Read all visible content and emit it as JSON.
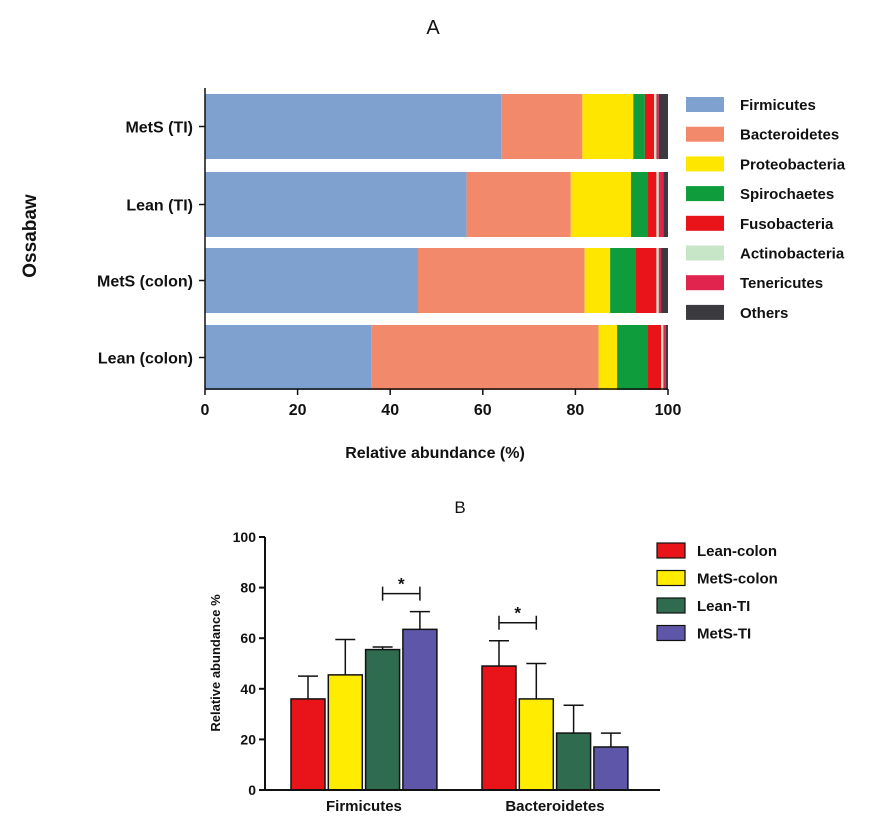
{
  "chart_data": [
    {
      "panel": "A",
      "type": "bar",
      "orientation": "horizontal",
      "stacked": true,
      "group_label": "Ossabaw",
      "categories": [
        "MetS (TI)",
        "Lean (TI)",
        "MetS (colon)",
        "Lean (colon)"
      ],
      "xlabel": "Relative abundance (%)",
      "xlim": [
        0,
        100
      ],
      "xticks": [
        "0",
        "20",
        "40",
        "60",
        "80",
        "100"
      ],
      "legend_position": "right",
      "series": [
        {
          "name": "Firmicutes",
          "color": "#7fa1cf",
          "values": [
            64.0,
            56.5,
            46.0,
            36.0
          ]
        },
        {
          "name": "Bacteroidetes",
          "color": "#f2896a",
          "values": [
            17.5,
            22.5,
            36.0,
            49.0
          ]
        },
        {
          "name": "Proteobacteria",
          "color": "#ffe600",
          "values": [
            11.0,
            13.0,
            5.5,
            4.0
          ]
        },
        {
          "name": "Spirochaetes",
          "color": "#0f9c3c",
          "values": [
            2.5,
            3.5,
            5.5,
            6.5
          ]
        },
        {
          "name": "Fusobacteria",
          "color": "#e8141a",
          "values": [
            2.0,
            2.0,
            4.5,
            3.0
          ]
        },
        {
          "name": "Actinobacteria",
          "color": "#c7e6c8",
          "values": [
            0.5,
            0.5,
            0.5,
            0.5
          ]
        },
        {
          "name": "Tenericutes",
          "color": "#e0244d",
          "values": [
            0.5,
            1.0,
            0.5,
            0.5
          ]
        },
        {
          "name": "Others",
          "color": "#3b3b3f",
          "values": [
            2.0,
            1.0,
            1.5,
            0.5
          ]
        }
      ]
    },
    {
      "panel": "B",
      "type": "bar",
      "grouped": true,
      "categories": [
        "Firmicutes",
        "Bacteroidetes"
      ],
      "ylabel": "Relative abundance %",
      "ylim": [
        0,
        100
      ],
      "yticks": [
        "0",
        "20",
        "40",
        "60",
        "80",
        "100"
      ],
      "legend_position": "right",
      "series": [
        {
          "name": "Lean-colon",
          "color": "#e8141a",
          "values": [
            36,
            49
          ],
          "errors": [
            9,
            10
          ]
        },
        {
          "name": "MetS-colon",
          "color": "#ffec00",
          "values": [
            45.5,
            36
          ],
          "errors": [
            14,
            14
          ]
        },
        {
          "name": "Lean-TI",
          "color": "#2e6b4f",
          "values": [
            55.5,
            22.5
          ],
          "errors": [
            1,
            11
          ]
        },
        {
          "name": "MetS-TI",
          "color": "#5e56a8",
          "values": [
            63.5,
            17
          ],
          "errors": [
            7,
            5.5
          ]
        }
      ],
      "significance": [
        {
          "label": "*",
          "category": "Firmicutes",
          "between": [
            "Lean-TI",
            "MetS-TI"
          ]
        },
        {
          "label": "*",
          "category": "Bacteroidetes",
          "between": [
            "Lean-colon",
            "MetS-colon"
          ]
        }
      ]
    }
  ]
}
